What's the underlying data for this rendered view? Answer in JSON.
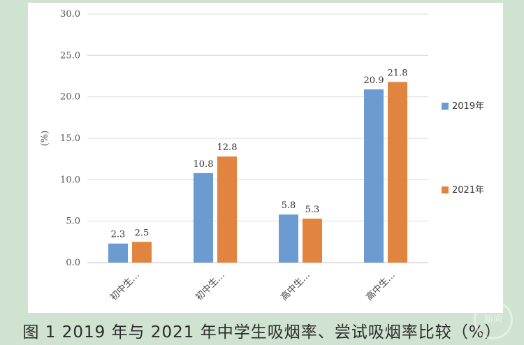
{
  "chart_data": {
    "type": "bar",
    "categories": [
      "初中生…",
      "初中生…",
      "高中生…",
      "高中生…"
    ],
    "series": [
      {
        "name": "2019年",
        "color": "#6b9bd1",
        "values": [
          2.3,
          10.8,
          5.8,
          20.9
        ]
      },
      {
        "name": "2021年",
        "color": "#e0843f",
        "values": [
          2.5,
          12.8,
          5.3,
          21.8
        ]
      }
    ],
    "ylabel": "(%)",
    "ylim": [
      0,
      30
    ],
    "yticks": [
      "0.0",
      "5.0",
      "10.0",
      "15.0",
      "20.0",
      "25.0",
      "30.0"
    ],
    "grid": true,
    "legend_position": "right"
  },
  "caption": "图 1 2019 年与 2021 年中学生吸烟率、尝试吸烟率比较（%）",
  "watermark": {
    "text": "新闻"
  }
}
